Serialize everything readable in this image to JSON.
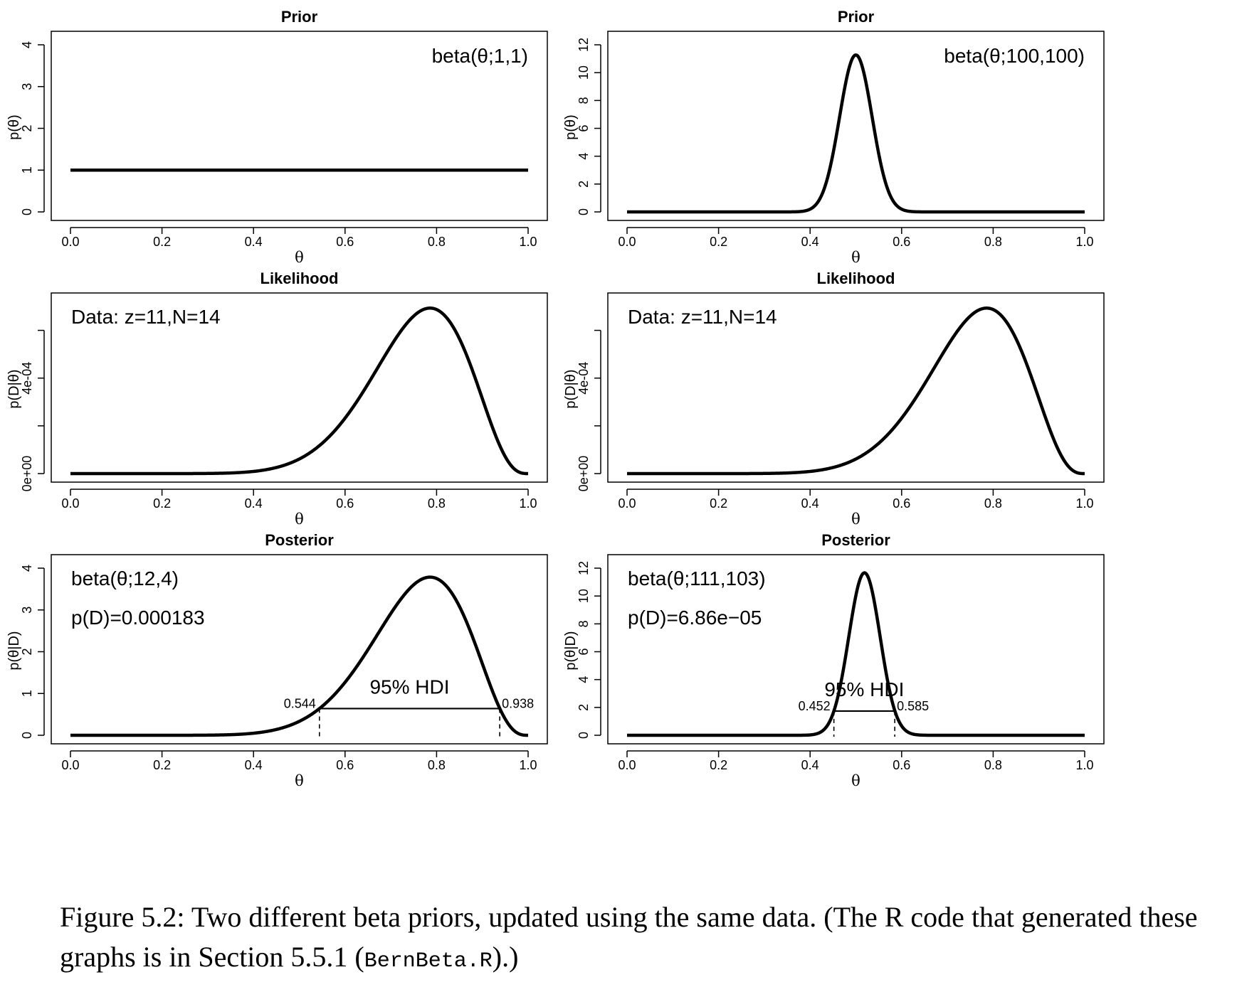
{
  "caption": {
    "before": "Figure 5.2: Two different beta priors, updated using the same data. (The R code that generated these graphs is in Section 5.5.1 (",
    "code": "BernBeta.R",
    "after": ").)"
  },
  "chart_data": [
    {
      "type": "line",
      "title": "Prior",
      "xlabel": "θ",
      "ylabel": "p(θ)",
      "xlim": [
        0,
        1
      ],
      "ylim": [
        0,
        4
      ],
      "x_ticks": [
        "0.0",
        "0.2",
        "0.4",
        "0.6",
        "0.8",
        "1.0"
      ],
      "y_ticks": [
        "0",
        "1",
        "2",
        "3",
        "4"
      ],
      "curve": {
        "kind": "beta",
        "a": 1,
        "b": 1
      },
      "annotations": [
        "beta(θ;1,1)"
      ]
    },
    {
      "type": "line",
      "title": "Prior",
      "xlabel": "θ",
      "ylabel": "p(θ)",
      "xlim": [
        0,
        1
      ],
      "ylim": [
        0,
        12
      ],
      "x_ticks": [
        "0.0",
        "0.2",
        "0.4",
        "0.6",
        "0.8",
        "1.0"
      ],
      "y_ticks": [
        "0",
        "2",
        "4",
        "6",
        "8",
        "10",
        "12"
      ],
      "curve": {
        "kind": "beta",
        "a": 100,
        "b": 100
      },
      "annotations": [
        "beta(θ;100,100)"
      ]
    },
    {
      "type": "line",
      "title": "Likelihood",
      "xlabel": "θ",
      "ylabel": "p(D|θ)",
      "xlim": [
        0,
        1
      ],
      "ylim": [
        0,
        0.0007
      ],
      "x_ticks": [
        "0.0",
        "0.2",
        "0.4",
        "0.6",
        "0.8",
        "1.0"
      ],
      "y_ticks": [
        "0e+00",
        "4e-04"
      ],
      "curve": {
        "kind": "likelihood",
        "z": 11,
        "N": 14
      },
      "annotations": [
        "Data: z=11,N=14"
      ]
    },
    {
      "type": "line",
      "title": "Likelihood",
      "xlabel": "θ",
      "ylabel": "p(D|θ)",
      "xlim": [
        0,
        1
      ],
      "ylim": [
        0,
        0.0007
      ],
      "x_ticks": [
        "0.0",
        "0.2",
        "0.4",
        "0.6",
        "0.8",
        "1.0"
      ],
      "y_ticks": [
        "0e+00",
        "4e-04"
      ],
      "curve": {
        "kind": "likelihood",
        "z": 11,
        "N": 14
      },
      "annotations": [
        "Data: z=11,N=14"
      ]
    },
    {
      "type": "line",
      "title": "Posterior",
      "xlabel": "θ",
      "ylabel": "p(θ|D)",
      "xlim": [
        0,
        1
      ],
      "ylim": [
        0,
        4
      ],
      "x_ticks": [
        "0.0",
        "0.2",
        "0.4",
        "0.6",
        "0.8",
        "1.0"
      ],
      "y_ticks": [
        "0",
        "1",
        "2",
        "3",
        "4"
      ],
      "curve": {
        "kind": "beta",
        "a": 12,
        "b": 4
      },
      "annotations": [
        "beta(θ;12,4)",
        "p(D)=0.000183"
      ],
      "hdi": {
        "label": "95% HDI",
        "low": 0.544,
        "high": 0.938,
        "low_label": "0.544",
        "high_label": "0.938"
      }
    },
    {
      "type": "line",
      "title": "Posterior",
      "xlabel": "θ",
      "ylabel": "p(θ|D)",
      "xlim": [
        0,
        1
      ],
      "ylim": [
        0,
        12
      ],
      "x_ticks": [
        "0.0",
        "0.2",
        "0.4",
        "0.6",
        "0.8",
        "1.0"
      ],
      "y_ticks": [
        "0",
        "2",
        "4",
        "6",
        "8",
        "10",
        "12"
      ],
      "curve": {
        "kind": "beta",
        "a": 111,
        "b": 103
      },
      "annotations": [
        "beta(θ;111,103)",
        "p(D)=6.86e−05"
      ],
      "hdi": {
        "label": "95% HDI",
        "low": 0.452,
        "high": 0.585,
        "low_label": "0.452",
        "high_label": "0.585"
      }
    }
  ]
}
